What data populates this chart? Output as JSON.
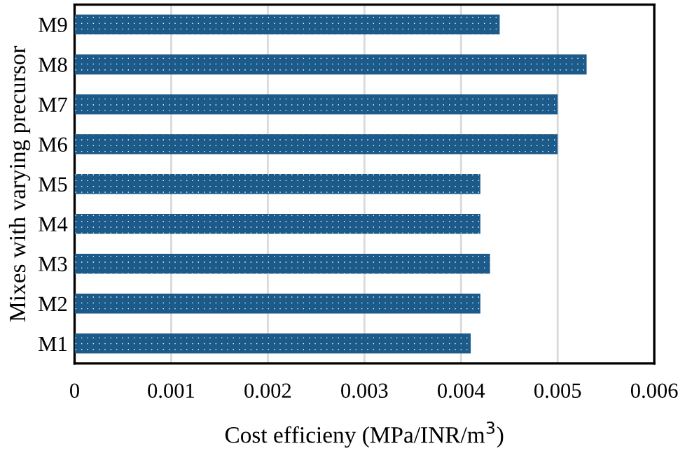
{
  "chart_data": {
    "type": "bar",
    "orientation": "horizontal",
    "categories": [
      "M9",
      "M8",
      "M7",
      "M6",
      "M5",
      "M4",
      "M3",
      "M2",
      "M1"
    ],
    "values": [
      0.0044,
      0.0053,
      0.005,
      0.005,
      0.0042,
      0.0042,
      0.0043,
      0.0042,
      0.0041
    ],
    "color": "#1c5a8a",
    "xlabel": "Cost efficieny (MPa/INR/m$^{3}$)",
    "ylabel": "Mixes with varying precursor",
    "xlim": [
      0,
      0.006
    ],
    "xticks": [
      0,
      0.001,
      0.002,
      0.003,
      0.004,
      0.005,
      0.006
    ],
    "grid": "x",
    "legend": false
  }
}
